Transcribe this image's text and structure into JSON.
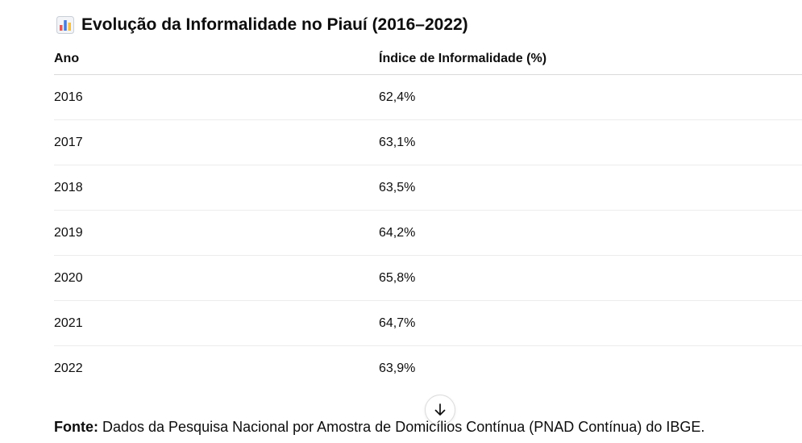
{
  "header": {
    "icon": "bar-chart-icon",
    "title": "Evolução da Informalidade no Piauí (2016–2022)"
  },
  "table": {
    "columns": [
      "Ano",
      "Índice de Informalidade (%)"
    ],
    "rows": [
      [
        "2016",
        "62,4%"
      ],
      [
        "2017",
        "63,1%"
      ],
      [
        "2018",
        "63,5%"
      ],
      [
        "2019",
        "64,2%"
      ],
      [
        "2020",
        "65,8%"
      ],
      [
        "2021",
        "64,7%"
      ],
      [
        "2022",
        "63,9%"
      ]
    ]
  },
  "scroll_button": {
    "icon": "arrow-down-icon"
  },
  "source": {
    "label": "Fonte:",
    "text": " Dados da Pesquisa Nacional por Amostra de Domicílios Contínua (PNAD Contínua) do IBGE."
  },
  "colors": {
    "text": "#0d0d0d",
    "divider": "#ececec",
    "bar_blue": "#4a7bd8",
    "bar_red": "#e05a5a",
    "bar_yellow": "#f2c14e"
  }
}
